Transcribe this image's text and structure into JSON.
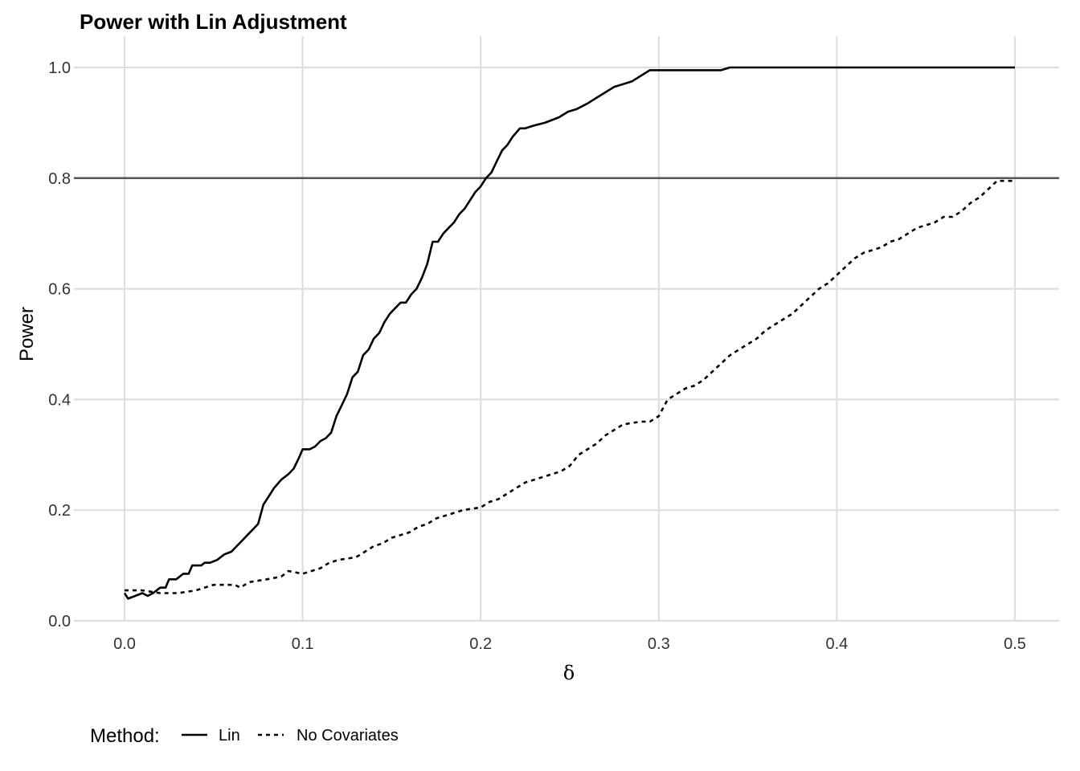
{
  "chart_data": {
    "type": "line",
    "title": "Power with Lin Adjustment",
    "xlabel": "δ",
    "ylabel": "Power",
    "xlim": [
      -0.025,
      0.525
    ],
    "ylim": [
      0.0,
      1.0
    ],
    "x_ticks": [
      "0.0",
      "0.1",
      "0.2",
      "0.3",
      "0.4",
      "0.5"
    ],
    "y_ticks": [
      "0.0",
      "0.2",
      "0.4",
      "0.6",
      "0.8",
      "1.0"
    ],
    "grid": true,
    "reference_line": {
      "y": 0.8,
      "color": "#555555"
    },
    "legend": {
      "title": "Method:",
      "position": "bottom-left"
    },
    "series": [
      {
        "name": "Lin",
        "linetype": "solid",
        "color": "#000000",
        "points": [
          [
            0.0,
            0.05
          ],
          [
            0.002,
            0.04
          ],
          [
            0.006,
            0.045
          ],
          [
            0.01,
            0.05
          ],
          [
            0.013,
            0.045
          ],
          [
            0.016,
            0.05
          ],
          [
            0.02,
            0.06
          ],
          [
            0.023,
            0.06
          ],
          [
            0.025,
            0.075
          ],
          [
            0.029,
            0.075
          ],
          [
            0.033,
            0.085
          ],
          [
            0.036,
            0.085
          ],
          [
            0.038,
            0.1
          ],
          [
            0.043,
            0.1
          ],
          [
            0.045,
            0.105
          ],
          [
            0.048,
            0.105
          ],
          [
            0.052,
            0.11
          ],
          [
            0.056,
            0.12
          ],
          [
            0.06,
            0.125
          ],
          [
            0.063,
            0.135
          ],
          [
            0.066,
            0.145
          ],
          [
            0.069,
            0.155
          ],
          [
            0.072,
            0.165
          ],
          [
            0.075,
            0.175
          ],
          [
            0.078,
            0.21
          ],
          [
            0.081,
            0.225
          ],
          [
            0.084,
            0.24
          ],
          [
            0.088,
            0.255
          ],
          [
            0.092,
            0.265
          ],
          [
            0.095,
            0.275
          ],
          [
            0.098,
            0.295
          ],
          [
            0.1,
            0.31
          ],
          [
            0.104,
            0.31
          ],
          [
            0.107,
            0.315
          ],
          [
            0.11,
            0.325
          ],
          [
            0.113,
            0.33
          ],
          [
            0.116,
            0.34
          ],
          [
            0.119,
            0.37
          ],
          [
            0.122,
            0.39
          ],
          [
            0.125,
            0.41
          ],
          [
            0.128,
            0.44
          ],
          [
            0.131,
            0.45
          ],
          [
            0.134,
            0.48
          ],
          [
            0.137,
            0.49
          ],
          [
            0.14,
            0.51
          ],
          [
            0.143,
            0.52
          ],
          [
            0.146,
            0.54
          ],
          [
            0.149,
            0.555
          ],
          [
            0.152,
            0.565
          ],
          [
            0.155,
            0.575
          ],
          [
            0.158,
            0.575
          ],
          [
            0.161,
            0.59
          ],
          [
            0.164,
            0.6
          ],
          [
            0.167,
            0.62
          ],
          [
            0.17,
            0.645
          ],
          [
            0.173,
            0.685
          ],
          [
            0.176,
            0.685
          ],
          [
            0.179,
            0.7
          ],
          [
            0.182,
            0.71
          ],
          [
            0.185,
            0.72
          ],
          [
            0.188,
            0.735
          ],
          [
            0.191,
            0.745
          ],
          [
            0.194,
            0.76
          ],
          [
            0.197,
            0.775
          ],
          [
            0.2,
            0.785
          ],
          [
            0.203,
            0.8
          ],
          [
            0.206,
            0.81
          ],
          [
            0.209,
            0.83
          ],
          [
            0.212,
            0.85
          ],
          [
            0.215,
            0.86
          ],
          [
            0.218,
            0.875
          ],
          [
            0.222,
            0.89
          ],
          [
            0.225,
            0.89
          ],
          [
            0.23,
            0.895
          ],
          [
            0.236,
            0.9
          ],
          [
            0.24,
            0.905
          ],
          [
            0.244,
            0.91
          ],
          [
            0.249,
            0.92
          ],
          [
            0.254,
            0.925
          ],
          [
            0.26,
            0.935
          ],
          [
            0.265,
            0.945
          ],
          [
            0.27,
            0.955
          ],
          [
            0.275,
            0.965
          ],
          [
            0.28,
            0.97
          ],
          [
            0.285,
            0.975
          ],
          [
            0.29,
            0.985
          ],
          [
            0.295,
            0.995
          ],
          [
            0.3,
            0.995
          ],
          [
            0.32,
            0.995
          ],
          [
            0.335,
            0.995
          ],
          [
            0.34,
            1.0
          ],
          [
            0.4,
            1.0
          ],
          [
            0.45,
            1.0
          ],
          [
            0.5,
            1.0
          ]
        ]
      },
      {
        "name": "No Covariates",
        "linetype": "dashed",
        "color": "#000000",
        "points": [
          [
            0.0,
            0.055
          ],
          [
            0.01,
            0.055
          ],
          [
            0.02,
            0.05
          ],
          [
            0.03,
            0.05
          ],
          [
            0.04,
            0.055
          ],
          [
            0.05,
            0.065
          ],
          [
            0.062,
            0.065
          ],
          [
            0.065,
            0.06
          ],
          [
            0.07,
            0.07
          ],
          [
            0.08,
            0.075
          ],
          [
            0.088,
            0.08
          ],
          [
            0.092,
            0.09
          ],
          [
            0.1,
            0.085
          ],
          [
            0.105,
            0.09
          ],
          [
            0.11,
            0.095
          ],
          [
            0.115,
            0.105
          ],
          [
            0.12,
            0.11
          ],
          [
            0.13,
            0.115
          ],
          [
            0.135,
            0.125
          ],
          [
            0.14,
            0.135
          ],
          [
            0.145,
            0.14
          ],
          [
            0.15,
            0.15
          ],
          [
            0.155,
            0.155
          ],
          [
            0.16,
            0.16
          ],
          [
            0.165,
            0.17
          ],
          [
            0.17,
            0.175
          ],
          [
            0.175,
            0.185
          ],
          [
            0.18,
            0.19
          ],
          [
            0.185,
            0.195
          ],
          [
            0.19,
            0.2
          ],
          [
            0.2,
            0.205
          ],
          [
            0.205,
            0.215
          ],
          [
            0.21,
            0.22
          ],
          [
            0.215,
            0.23
          ],
          [
            0.22,
            0.24
          ],
          [
            0.225,
            0.25
          ],
          [
            0.235,
            0.26
          ],
          [
            0.24,
            0.265
          ],
          [
            0.245,
            0.27
          ],
          [
            0.25,
            0.28
          ],
          [
            0.255,
            0.3
          ],
          [
            0.26,
            0.31
          ],
          [
            0.265,
            0.32
          ],
          [
            0.27,
            0.335
          ],
          [
            0.275,
            0.345
          ],
          [
            0.28,
            0.355
          ],
          [
            0.29,
            0.36
          ],
          [
            0.295,
            0.36
          ],
          [
            0.3,
            0.37
          ],
          [
            0.305,
            0.4
          ],
          [
            0.31,
            0.41
          ],
          [
            0.315,
            0.42
          ],
          [
            0.32,
            0.425
          ],
          [
            0.325,
            0.435
          ],
          [
            0.33,
            0.45
          ],
          [
            0.335,
            0.465
          ],
          [
            0.34,
            0.48
          ],
          [
            0.345,
            0.49
          ],
          [
            0.35,
            0.5
          ],
          [
            0.355,
            0.51
          ],
          [
            0.36,
            0.525
          ],
          [
            0.365,
            0.535
          ],
          [
            0.37,
            0.545
          ],
          [
            0.375,
            0.555
          ],
          [
            0.38,
            0.57
          ],
          [
            0.385,
            0.585
          ],
          [
            0.39,
            0.6
          ],
          [
            0.395,
            0.61
          ],
          [
            0.4,
            0.625
          ],
          [
            0.405,
            0.64
          ],
          [
            0.41,
            0.655
          ],
          [
            0.415,
            0.665
          ],
          [
            0.42,
            0.67
          ],
          [
            0.425,
            0.675
          ],
          [
            0.43,
            0.685
          ],
          [
            0.435,
            0.69
          ],
          [
            0.44,
            0.7
          ],
          [
            0.445,
            0.71
          ],
          [
            0.45,
            0.715
          ],
          [
            0.455,
            0.72
          ],
          [
            0.46,
            0.73
          ],
          [
            0.465,
            0.73
          ],
          [
            0.47,
            0.74
          ],
          [
            0.475,
            0.755
          ],
          [
            0.48,
            0.765
          ],
          [
            0.485,
            0.78
          ],
          [
            0.49,
            0.795
          ],
          [
            0.5,
            0.795
          ]
        ]
      }
    ]
  }
}
